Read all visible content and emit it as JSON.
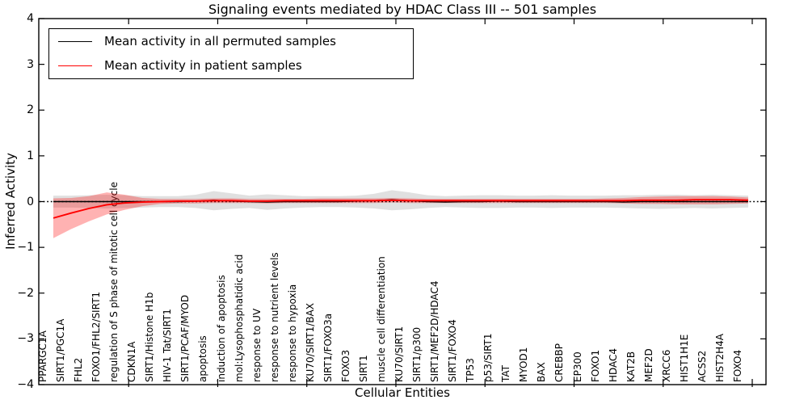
{
  "title": "Signaling events mediated by HDAC Class III -- 501 samples",
  "legend": {
    "items": [
      {
        "label": "Mean activity in all permuted samples",
        "color": "#000000"
      },
      {
        "label": "Mean activity in patient samples",
        "color": "#ff0000"
      }
    ],
    "position": "upper left"
  },
  "chart_data": {
    "type": "line",
    "title": "Signaling events mediated by HDAC Class III -- 501 samples",
    "xlabel": "Cellular Entities",
    "ylabel": "Inferred Activity",
    "ylim": [
      -4,
      4
    ],
    "yticks": [
      4,
      3,
      2,
      1,
      0,
      -1,
      -2,
      -3,
      -4
    ],
    "yticklabels": [
      "4",
      "3",
      "2",
      "1",
      "0",
      "−1",
      "−2",
      "−3",
      "−4"
    ],
    "grid": false,
    "zero_line": {
      "y": 0,
      "style": "dotted",
      "color": "#000000"
    },
    "categories": [
      "PPARGC1A",
      "SIRT1/PGC1A",
      "FHL2",
      "FOXO1/FHL2/SIRT1",
      "regulation of S phase of mitotic cell cycle",
      "CDKN1A",
      "SIRT1/Histone H1b",
      "HIV-1 Tat/SIRT1",
      "SIRT1/PCAF/MYOD",
      "apoptosis",
      "induction of apoptosis",
      "mol:Lysophosphatidic acid",
      "response to UV",
      "response to nutrient levels",
      "response to hypoxia",
      "KU70/SIRT1/BAX",
      "SIRT1/FOXO3a",
      "FOXO3",
      "SIRT1",
      "muscle cell differentiation",
      "KU70/SIRT1",
      "SIRT1/p300",
      "SIRT1/MEF2D/HDAC4",
      "SIRT1/FOXO4",
      "TP53",
      "p53/SIRT1",
      "TAT",
      "MYOD1",
      "BAX",
      "CREBBP",
      "EP300",
      "FOXO1",
      "HDAC4",
      "KAT2B",
      "MEF2D",
      "XRCC6",
      "HIST1H1E",
      "ACSS2",
      "HIST2H4A",
      "FOXO4"
    ],
    "series": [
      {
        "name": "Mean activity in all permuted samples",
        "color": "#000000",
        "band_color": "rgba(130,130,130,0.25)",
        "values": [
          0.0,
          0.0,
          0.0,
          0.0,
          0.0,
          0.0,
          0.0,
          0.0,
          0.01,
          0.03,
          0.01,
          0.0,
          -0.01,
          0.0,
          0.0,
          0.0,
          0.0,
          0.01,
          0.02,
          0.04,
          0.02,
          0.0,
          -0.01,
          0.0,
          0.0,
          0.01,
          0.0,
          0.0,
          0.0,
          0.0,
          0.0,
          0.0,
          -0.01,
          0.0,
          0.0,
          0.0,
          0.0,
          0.0,
          0.0,
          0.0
        ],
        "band_hi": [
          0.13,
          0.13,
          0.14,
          0.15,
          0.14,
          0.12,
          0.12,
          0.12,
          0.15,
          0.23,
          0.18,
          0.13,
          0.16,
          0.14,
          0.12,
          0.12,
          0.12,
          0.13,
          0.17,
          0.25,
          0.2,
          0.14,
          0.12,
          0.13,
          0.14,
          0.14,
          0.13,
          0.13,
          0.14,
          0.13,
          0.13,
          0.13,
          0.14,
          0.14,
          0.15,
          0.15,
          0.14,
          0.15,
          0.14,
          0.13
        ],
        "band_lo": [
          -0.13,
          -0.13,
          -0.14,
          -0.15,
          -0.14,
          -0.13,
          -0.12,
          -0.12,
          -0.14,
          -0.19,
          -0.16,
          -0.14,
          -0.18,
          -0.15,
          -0.13,
          -0.12,
          -0.12,
          -0.13,
          -0.15,
          -0.19,
          -0.17,
          -0.14,
          -0.12,
          -0.13,
          -0.14,
          -0.14,
          -0.13,
          -0.13,
          -0.14,
          -0.13,
          -0.13,
          -0.13,
          -0.14,
          -0.15,
          -0.16,
          -0.15,
          -0.14,
          -0.15,
          -0.14,
          -0.13
        ]
      },
      {
        "name": "Mean activity in patient samples",
        "color": "#ff0000",
        "band_color": "rgba(255,0,0,0.30)",
        "values": [
          -0.36,
          -0.25,
          -0.15,
          -0.07,
          -0.03,
          -0.01,
          0.0,
          0.01,
          0.01,
          0.02,
          0.02,
          0.01,
          0.01,
          0.02,
          0.02,
          0.02,
          0.02,
          0.02,
          0.02,
          0.03,
          0.02,
          0.02,
          0.02,
          0.02,
          0.02,
          0.02,
          0.02,
          0.02,
          0.02,
          0.02,
          0.02,
          0.02,
          0.02,
          0.03,
          0.03,
          0.03,
          0.04,
          0.04,
          0.04,
          0.03
        ],
        "band_hi": [
          0.07,
          0.08,
          0.12,
          0.2,
          0.15,
          0.08,
          0.06,
          0.06,
          0.06,
          0.07,
          0.07,
          0.06,
          0.06,
          0.06,
          0.06,
          0.07,
          0.07,
          0.07,
          0.07,
          0.08,
          0.07,
          0.06,
          0.06,
          0.06,
          0.06,
          0.06,
          0.06,
          0.06,
          0.06,
          0.06,
          0.06,
          0.07,
          0.08,
          0.1,
          0.11,
          0.12,
          0.12,
          0.12,
          0.11,
          0.09
        ],
        "band_lo": [
          -0.8,
          -0.6,
          -0.43,
          -0.28,
          -0.18,
          -0.1,
          -0.05,
          -0.04,
          -0.04,
          -0.03,
          -0.03,
          -0.03,
          -0.04,
          -0.03,
          -0.03,
          -0.03,
          -0.03,
          -0.03,
          -0.03,
          -0.02,
          -0.03,
          -0.03,
          -0.03,
          -0.03,
          -0.03,
          -0.03,
          -0.03,
          -0.03,
          -0.03,
          -0.03,
          -0.03,
          -0.03,
          -0.04,
          -0.05,
          -0.05,
          -0.06,
          -0.06,
          -0.06,
          -0.05,
          -0.04
        ]
      }
    ],
    "legend_position": "upper left"
  }
}
